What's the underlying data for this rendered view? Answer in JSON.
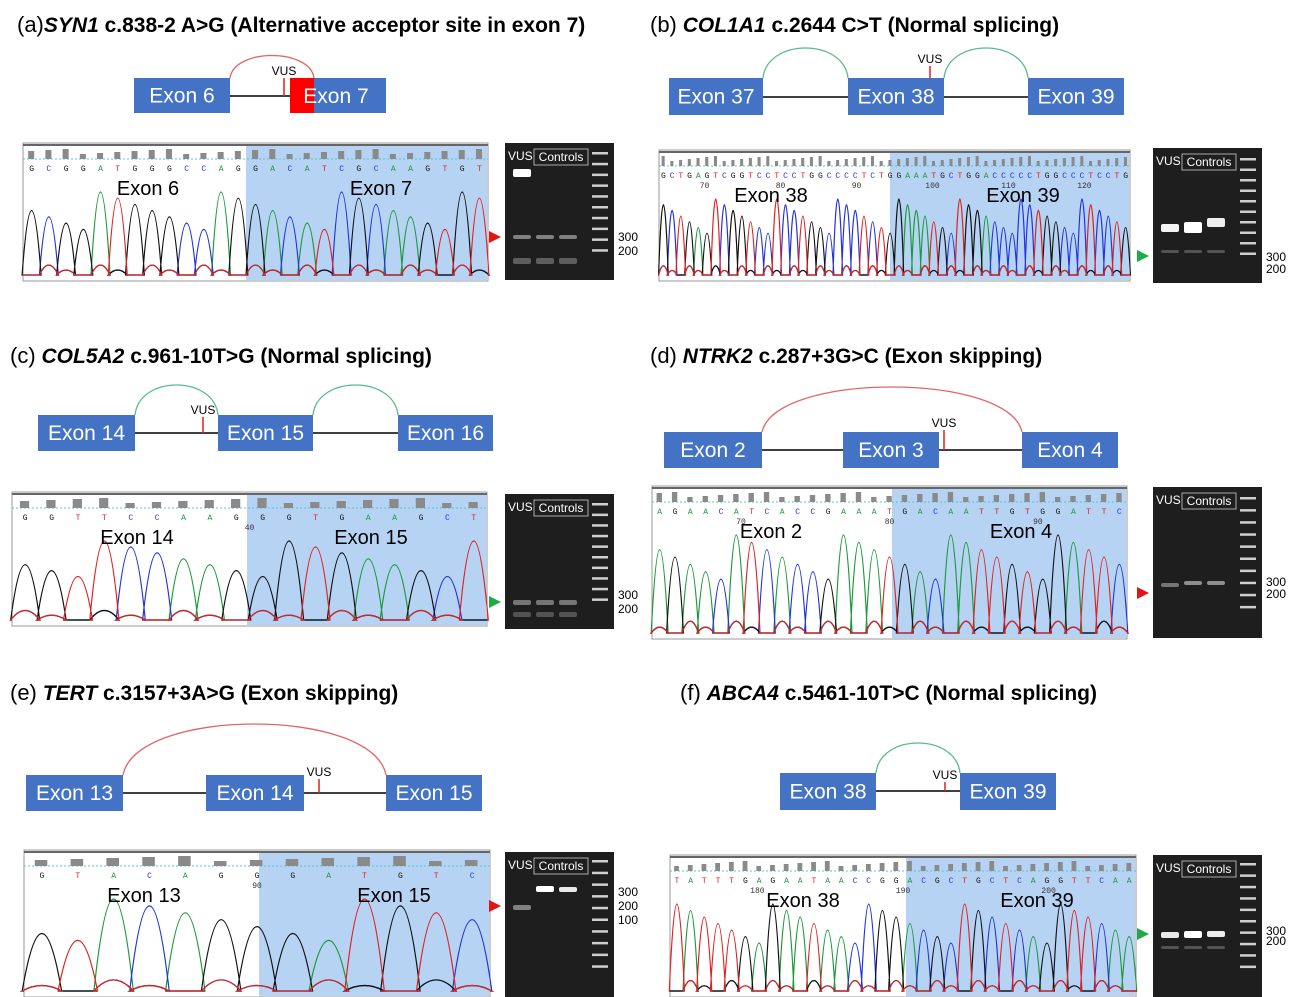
{
  "colors": {
    "exon": "#4472c4",
    "exon_alt": "#ff0000",
    "arc_abnormal": "#e06666",
    "arc_normal": "#57bb8a",
    "vus_mark": "#e02020",
    "highlight": "#b7d3f4",
    "arrow_abnormal": "#e01515",
    "arrow_normal": "#1faa4a",
    "trace_a": "#1a9a3a",
    "trace_c": "#2233dd",
    "trace_g": "#111111",
    "trace_t": "#dd2222"
  },
  "panels": [
    {
      "letter": "(a)",
      "gene": "SYN1",
      "title_rest": "c.838-2 A>G (Alternative acceptor site in exon 7)",
      "exons": [
        "Exon 6",
        "Exon 7"
      ],
      "vus": "VUS",
      "chrom_left": "Exon 6",
      "chrom_right": "Exon 7",
      "gel_vus": "VUS",
      "gel_controls": "Controls",
      "sizes": [
        "300",
        "200"
      ],
      "result": "abnormal"
    },
    {
      "letter": "(b)",
      "gene": "COL1A1",
      "title_rest": "c.2644 C>T (Normal splicing)",
      "exons": [
        "Exon 37",
        "Exon 38",
        "Exon 39"
      ],
      "vus": "VUS",
      "chrom_left": "Exon 38",
      "chrom_right": "Exon 39",
      "gel_vus": "VUS",
      "gel_controls": "Controls",
      "sizes": [
        "300",
        "200"
      ],
      "result": "normal"
    },
    {
      "letter": "(c)",
      "gene": "COL5A2",
      "title_rest": "c.961-10T>G (Normal splicing)",
      "exons": [
        "Exon 14",
        "Exon 15",
        "Exon 16"
      ],
      "vus": "VUS",
      "chrom_left": "Exon 14",
      "chrom_right": "Exon 15",
      "gel_vus": "VUS",
      "gel_controls": "Controls",
      "sizes": [
        "300",
        "200"
      ],
      "result": "normal"
    },
    {
      "letter": "(d)",
      "gene": "NTRK2",
      "title_rest": "c.287+3G>C (Exon skipping)",
      "exons": [
        "Exon 2",
        "Exon 3",
        "Exon 4"
      ],
      "vus": "VUS",
      "chrom_left": "Exon 2",
      "chrom_right": "Exon 4",
      "gel_vus": "VUS",
      "gel_controls": "Controls",
      "sizes": [
        "300",
        "200"
      ],
      "result": "abnormal"
    },
    {
      "letter": "(e)",
      "gene": "TERT",
      "title_rest": "c.3157+3A>G (Exon skipping)",
      "exons": [
        "Exon 13",
        "Exon 14",
        "Exon 15"
      ],
      "vus": "VUS",
      "chrom_left": "Exon 13",
      "chrom_right": "Exon 15",
      "gel_vus": "VUS",
      "gel_controls": "Controls",
      "sizes": [
        "300",
        "200",
        "100"
      ],
      "result": "abnormal"
    },
    {
      "letter": "(f)",
      "gene": "ABCA4",
      "title_rest": "c.5461-10T>C (Normal splicing)",
      "exons": [
        "Exon 38",
        "Exon 39"
      ],
      "vus": "VUS",
      "chrom_left": "Exon 38",
      "chrom_right": "Exon 39",
      "gel_vus": "VUS",
      "gel_controls": "Controls",
      "sizes": [
        "300",
        "200"
      ],
      "result": "normal"
    }
  ],
  "sequences": {
    "a": "GCGGATGGGCCAGGACATCGCAAGTGT",
    "b": "GCTGAGTCGGTCCTCCTGGCCCCTCTGGAAATGCTGGACCCCCTGGCCCTCCTG",
    "c": "GGTTCCAAGGGTGAAGCT",
    "d": "AGAACATCACCGAAATGACAATTGTGGATTC",
    "e": "GTACAGGGATGTC",
    "f": "TATTTGAGAATAACCGGACGCTGCTCAGGTTCAA"
  },
  "position_ticks": {
    "b": [
      "70",
      "80",
      "90",
      "100",
      "110",
      "120"
    ],
    "c": [
      "40"
    ],
    "d": [
      "70",
      "80",
      "90"
    ],
    "e": [
      "90"
    ],
    "f": [
      "180",
      "190",
      "200"
    ]
  }
}
